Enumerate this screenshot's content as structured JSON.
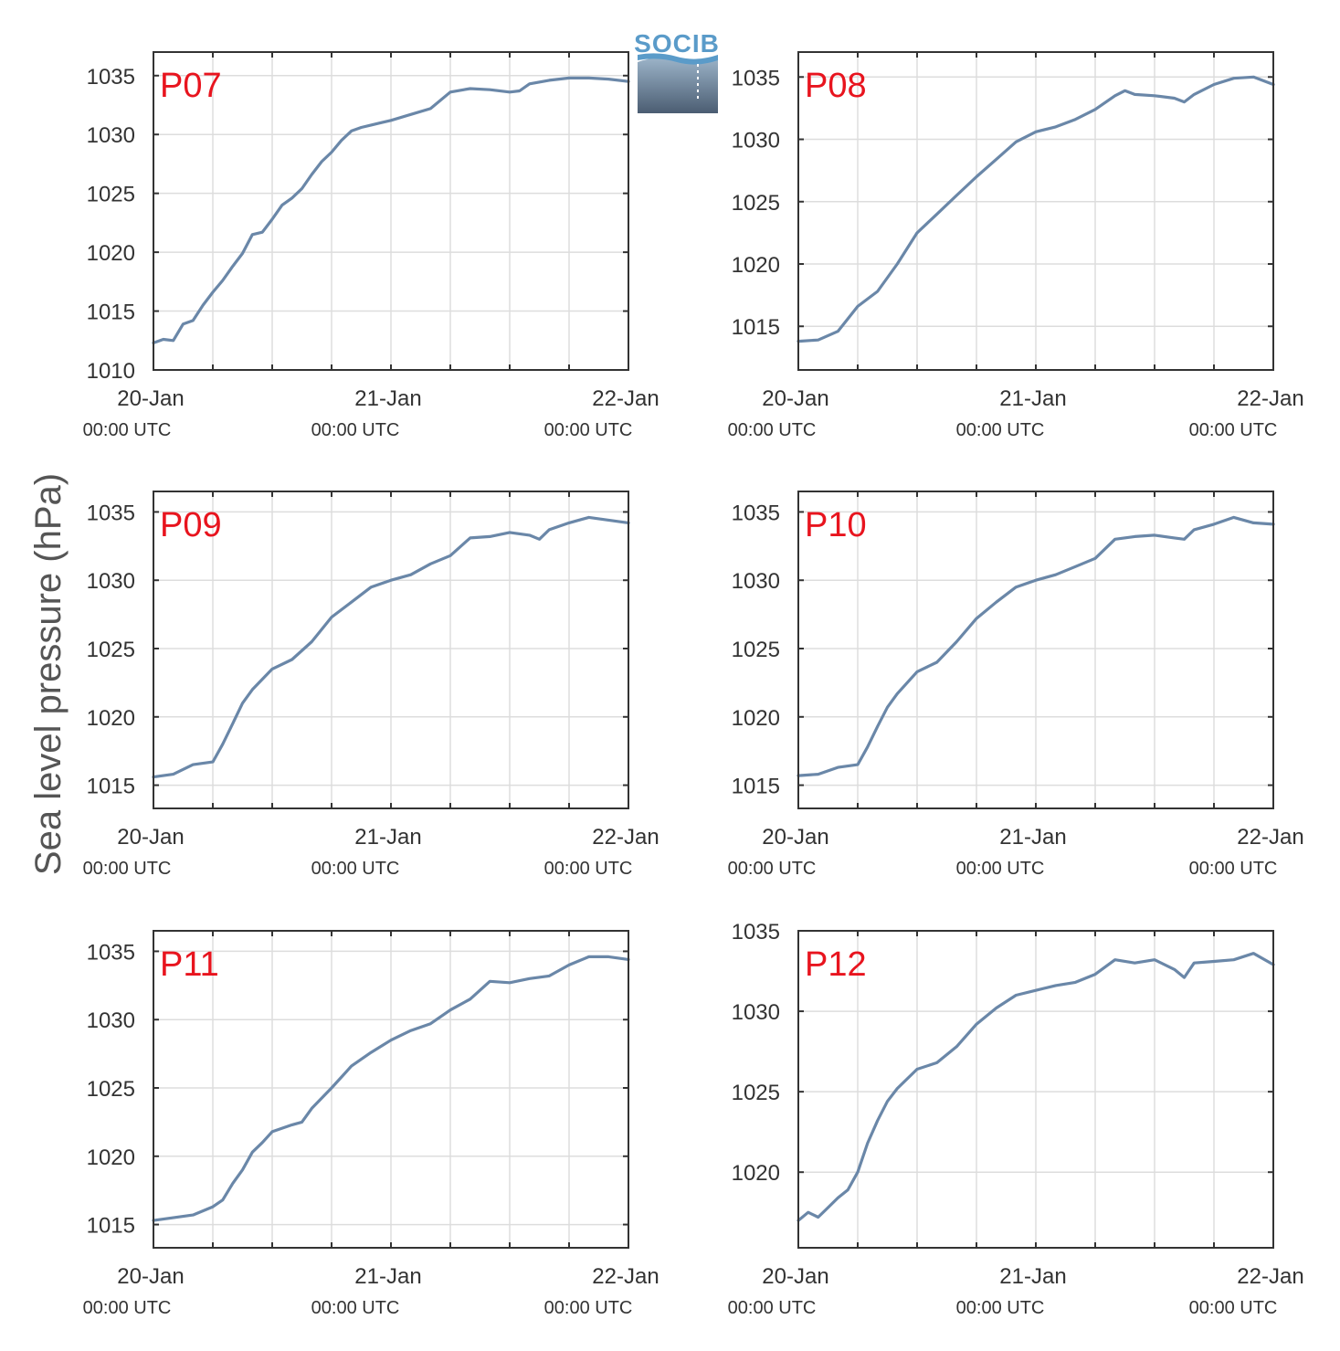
{
  "logo": {
    "text": "SOCIB"
  },
  "ylabel": "Sea level pressure (hPa)",
  "colors": {
    "line": "#6a87a8",
    "panel_label": "#e8141e",
    "grid": "#dddddd",
    "axis": "#333333"
  },
  "chart_data": [
    {
      "type": "line",
      "label": "P07",
      "ylim": [
        1010,
        1037
      ],
      "yticks": [
        1010,
        1015,
        1020,
        1025,
        1030,
        1035
      ],
      "xticks": [
        {
          "date": "20-Jan",
          "time": "00:00 UTC"
        },
        {
          "date": "21-Jan",
          "time": "00:00 UTC"
        },
        {
          "date": "22-Jan",
          "time": "00:00 UTC"
        }
      ],
      "x_hours": [
        0,
        1,
        2,
        3,
        4,
        5,
        6,
        7,
        8,
        9,
        10,
        11,
        12,
        13,
        14,
        15,
        16,
        17,
        18,
        19,
        20,
        21,
        22,
        23,
        24,
        26,
        28,
        30,
        32,
        34,
        36,
        37,
        38,
        40,
        42,
        44,
        46,
        48
      ],
      "values": [
        1012.3,
        1012.6,
        1012.5,
        1013.9,
        1014.2,
        1015.5,
        1016.6,
        1017.6,
        1018.8,
        1019.9,
        1021.5,
        1021.7,
        1022.8,
        1024.0,
        1024.6,
        1025.4,
        1026.6,
        1027.7,
        1028.5,
        1029.5,
        1030.3,
        1030.6,
        1030.8,
        1031.0,
        1031.2,
        1031.7,
        1032.2,
        1033.6,
        1033.9,
        1033.8,
        1033.6,
        1033.7,
        1034.3,
        1034.6,
        1034.8,
        1034.8,
        1034.7,
        1034.5
      ]
    },
    {
      "type": "line",
      "label": "P08",
      "ylim": [
        1011.5,
        1037
      ],
      "yticks": [
        1015,
        1020,
        1025,
        1030,
        1035
      ],
      "xticks": [
        {
          "date": "20-Jan",
          "time": "00:00 UTC"
        },
        {
          "date": "21-Jan",
          "time": "00:00 UTC"
        },
        {
          "date": "22-Jan",
          "time": "00:00 UTC"
        }
      ],
      "x_hours": [
        0,
        2,
        4,
        6,
        8,
        10,
        12,
        14,
        16,
        18,
        20,
        22,
        24,
        26,
        28,
        30,
        32,
        33,
        34,
        36,
        38,
        39,
        40,
        42,
        44,
        46,
        48
      ],
      "values": [
        1013.8,
        1013.9,
        1014.6,
        1016.6,
        1017.8,
        1020.0,
        1022.5,
        1024.0,
        1025.5,
        1027.0,
        1028.4,
        1029.8,
        1030.6,
        1031.0,
        1031.6,
        1032.4,
        1033.5,
        1033.9,
        1033.6,
        1033.5,
        1033.3,
        1033.0,
        1033.6,
        1034.4,
        1034.9,
        1035.0,
        1034.4
      ]
    },
    {
      "type": "line",
      "label": "P09",
      "ylim": [
        1013.3,
        1036.5
      ],
      "yticks": [
        1015,
        1020,
        1025,
        1030,
        1035
      ],
      "xticks": [
        {
          "date": "20-Jan",
          "time": "00:00 UTC"
        },
        {
          "date": "21-Jan",
          "time": "00:00 UTC"
        },
        {
          "date": "22-Jan",
          "time": "00:00 UTC"
        }
      ],
      "x_hours": [
        0,
        2,
        4,
        6,
        7,
        8,
        9,
        10,
        12,
        14,
        16,
        18,
        20,
        22,
        24,
        26,
        28,
        30,
        32,
        34,
        36,
        38,
        39,
        40,
        42,
        44,
        46,
        48
      ],
      "values": [
        1015.6,
        1015.8,
        1016.5,
        1016.7,
        1018.0,
        1019.5,
        1021.0,
        1022.0,
        1023.5,
        1024.2,
        1025.5,
        1027.3,
        1028.4,
        1029.5,
        1030.0,
        1030.4,
        1031.2,
        1031.8,
        1033.1,
        1033.2,
        1033.5,
        1033.3,
        1033.0,
        1033.7,
        1034.2,
        1034.6,
        1034.4,
        1034.2
      ]
    },
    {
      "type": "line",
      "label": "P10",
      "ylim": [
        1013.3,
        1036.5
      ],
      "yticks": [
        1015,
        1020,
        1025,
        1030,
        1035
      ],
      "xticks": [
        {
          "date": "20-Jan",
          "time": "00:00 UTC"
        },
        {
          "date": "21-Jan",
          "time": "00:00 UTC"
        },
        {
          "date": "22-Jan",
          "time": "00:00 UTC"
        }
      ],
      "x_hours": [
        0,
        2,
        4,
        6,
        7,
        8,
        9,
        10,
        12,
        14,
        16,
        18,
        20,
        22,
        24,
        26,
        28,
        30,
        32,
        34,
        36,
        38,
        39,
        40,
        42,
        44,
        46,
        48
      ],
      "values": [
        1015.7,
        1015.8,
        1016.3,
        1016.5,
        1017.8,
        1019.3,
        1020.7,
        1021.7,
        1023.3,
        1024.0,
        1025.5,
        1027.2,
        1028.4,
        1029.5,
        1030.0,
        1030.4,
        1031.0,
        1031.6,
        1033.0,
        1033.2,
        1033.3,
        1033.1,
        1033.0,
        1033.7,
        1034.1,
        1034.6,
        1034.2,
        1034.1
      ]
    },
    {
      "type": "line",
      "label": "P11",
      "ylim": [
        1013.3,
        1036.5
      ],
      "yticks": [
        1015,
        1020,
        1025,
        1030,
        1035
      ],
      "xticks": [
        {
          "date": "20-Jan",
          "time": "00:00 UTC"
        },
        {
          "date": "21-Jan",
          "time": "00:00 UTC"
        },
        {
          "date": "22-Jan",
          "time": "00:00 UTC"
        }
      ],
      "x_hours": [
        0,
        2,
        4,
        6,
        7,
        8,
        9,
        10,
        11,
        12,
        14,
        15,
        16,
        18,
        20,
        22,
        24,
        26,
        28,
        30,
        32,
        34,
        36,
        38,
        40,
        42,
        44,
        46,
        48
      ],
      "values": [
        1015.3,
        1015.5,
        1015.7,
        1016.3,
        1016.8,
        1018.0,
        1019.0,
        1020.3,
        1021.0,
        1021.8,
        1022.3,
        1022.5,
        1023.5,
        1025.0,
        1026.6,
        1027.6,
        1028.5,
        1029.2,
        1029.7,
        1030.7,
        1031.5,
        1032.8,
        1032.7,
        1033.0,
        1033.2,
        1034.0,
        1034.6,
        1034.6,
        1034.4
      ]
    },
    {
      "type": "line",
      "label": "P12",
      "ylim": [
        1015.3,
        1035
      ],
      "yticks": [
        1020,
        1025,
        1030,
        1035
      ],
      "xticks": [
        {
          "date": "20-Jan",
          "time": "00:00 UTC"
        },
        {
          "date": "21-Jan",
          "time": "00:00 UTC"
        },
        {
          "date": "22-Jan",
          "time": "00:00 UTC"
        }
      ],
      "x_hours": [
        0,
        1,
        2,
        3,
        4,
        5,
        6,
        7,
        8,
        9,
        10,
        12,
        14,
        16,
        18,
        20,
        22,
        24,
        26,
        28,
        30,
        32,
        34,
        36,
        38,
        39,
        40,
        42,
        44,
        46,
        48
      ],
      "values": [
        1017.0,
        1017.5,
        1017.2,
        1017.8,
        1018.4,
        1018.9,
        1020.0,
        1021.8,
        1023.2,
        1024.4,
        1025.2,
        1026.4,
        1026.8,
        1027.8,
        1029.2,
        1030.2,
        1031.0,
        1031.3,
        1031.6,
        1031.8,
        1032.3,
        1033.2,
        1033.0,
        1033.2,
        1032.6,
        1032.1,
        1033.0,
        1033.1,
        1033.2,
        1033.6,
        1032.9
      ]
    }
  ]
}
